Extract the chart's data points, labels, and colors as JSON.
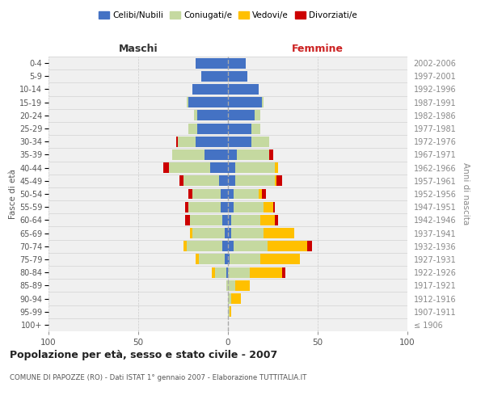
{
  "age_groups": [
    "100+",
    "95-99",
    "90-94",
    "85-89",
    "80-84",
    "75-79",
    "70-74",
    "65-69",
    "60-64",
    "55-59",
    "50-54",
    "45-49",
    "40-44",
    "35-39",
    "30-34",
    "25-29",
    "20-24",
    "15-19",
    "10-14",
    "5-9",
    "0-4"
  ],
  "birth_years": [
    "≤ 1906",
    "1907-1911",
    "1912-1916",
    "1917-1921",
    "1922-1926",
    "1927-1931",
    "1932-1936",
    "1937-1941",
    "1942-1946",
    "1947-1951",
    "1952-1956",
    "1957-1961",
    "1962-1966",
    "1967-1971",
    "1972-1976",
    "1977-1981",
    "1982-1986",
    "1987-1991",
    "1992-1996",
    "1997-2001",
    "2002-2006"
  ],
  "maschi": {
    "celibi": [
      0,
      0,
      0,
      0,
      1,
      2,
      3,
      2,
      3,
      4,
      4,
      5,
      10,
      13,
      18,
      17,
      17,
      22,
      20,
      15,
      18
    ],
    "coniugati": [
      0,
      0,
      0,
      1,
      6,
      14,
      20,
      18,
      18,
      18,
      16,
      20,
      23,
      18,
      10,
      5,
      2,
      1,
      0,
      0,
      0
    ],
    "vedovi": [
      0,
      0,
      0,
      0,
      2,
      2,
      2,
      1,
      0,
      0,
      0,
      0,
      0,
      0,
      0,
      0,
      0,
      0,
      0,
      0,
      0
    ],
    "divorziati": [
      0,
      0,
      0,
      0,
      0,
      0,
      0,
      0,
      3,
      2,
      2,
      2,
      3,
      0,
      1,
      0,
      0,
      0,
      0,
      0,
      0
    ]
  },
  "femmine": {
    "nubili": [
      0,
      0,
      0,
      0,
      0,
      1,
      3,
      2,
      2,
      3,
      3,
      4,
      4,
      5,
      13,
      13,
      15,
      19,
      17,
      11,
      10
    ],
    "coniugate": [
      0,
      1,
      2,
      4,
      12,
      17,
      19,
      18,
      16,
      17,
      14,
      22,
      22,
      18,
      10,
      5,
      3,
      1,
      0,
      0,
      0
    ],
    "vedove": [
      0,
      1,
      5,
      8,
      18,
      22,
      22,
      17,
      8,
      5,
      2,
      1,
      2,
      0,
      0,
      0,
      0,
      0,
      0,
      0,
      0
    ],
    "divorziate": [
      0,
      0,
      0,
      0,
      2,
      0,
      3,
      0,
      2,
      1,
      2,
      3,
      0,
      2,
      0,
      0,
      0,
      0,
      0,
      0,
      0
    ]
  },
  "colors": {
    "celibi": "#4472c4",
    "coniugati": "#c5d9a0",
    "vedovi": "#ffc000",
    "divorziati": "#cc0000"
  },
  "xlim": 100,
  "title": "Popolazione per età, sesso e stato civile - 2007",
  "subtitle": "COMUNE DI PAPOZZE (RO) - Dati ISTAT 1° gennaio 2007 - Elaborazione TUTTITALIA.IT",
  "ylabel_left": "Fasce di età",
  "ylabel_right": "Anni di nascita",
  "xlabel_maschi": "Maschi",
  "xlabel_femmine": "Femmine",
  "legend_labels": [
    "Celibi/Nubili",
    "Coniugati/e",
    "Vedovi/e",
    "Divorziati/e"
  ],
  "background_color": "#f0f0f0"
}
